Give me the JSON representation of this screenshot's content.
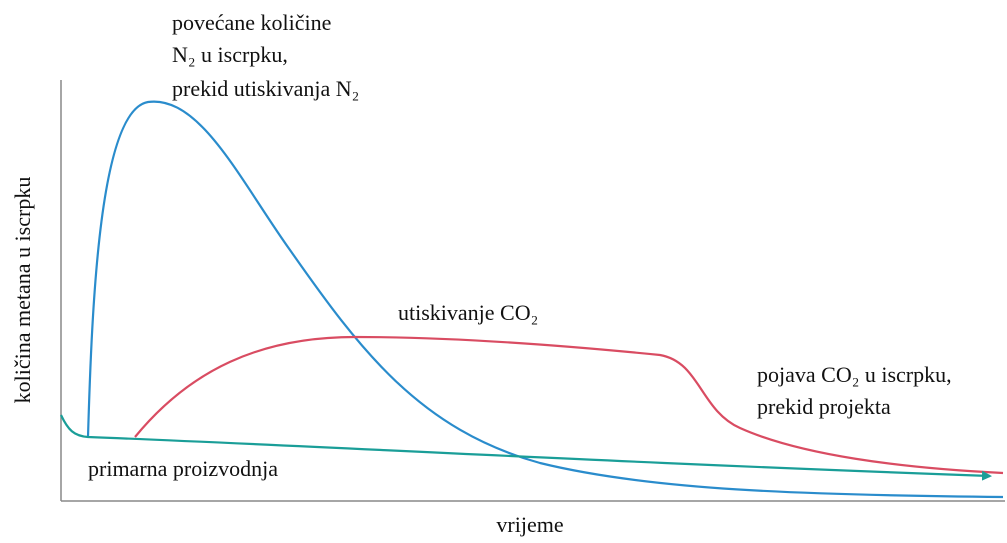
{
  "labels": {
    "n2_peak": [
      "povećane količine",
      "N₂ u iscrpku,",
      "prekid utiskivanja N₂"
    ],
    "co2_injection": "utiskivanje CO₂",
    "co2_breakthrough": [
      "pojava CO₂ u iscrpku,",
      "prekid projekta"
    ],
    "primary": "primarna proizvodnja"
  },
  "axes": {
    "y_label": "količina metana u iscrpku",
    "x_label": "vrijeme"
  }
}
